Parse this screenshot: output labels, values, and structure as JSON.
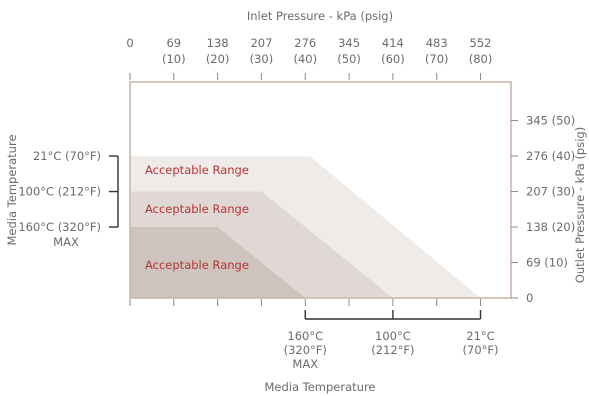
{
  "chart_data": {
    "type": "area",
    "title": "",
    "x_top": {
      "label": "Inlet Pressure - kPa (psig)",
      "ticks": [
        {
          "value": 0,
          "kpa": "0",
          "psig": ""
        },
        {
          "value": 69,
          "kpa": "69",
          "psig": "(10)"
        },
        {
          "value": 138,
          "kpa": "138",
          "psig": "(20)"
        },
        {
          "value": 207,
          "kpa": "207",
          "psig": "(30)"
        },
        {
          "value": 276,
          "kpa": "276",
          "psig": "(40)"
        },
        {
          "value": 345,
          "kpa": "345",
          "psig": "(50)"
        },
        {
          "value": 414,
          "kpa": "414",
          "psig": "(60)"
        },
        {
          "value": 483,
          "kpa": "483",
          "psig": "(70)"
        },
        {
          "value": 552,
          "kpa": "552",
          "psig": "(80)"
        }
      ],
      "xlim": [
        0,
        600
      ]
    },
    "y_right": {
      "label": "Outlet Pressure - kPa (psig)",
      "ticks": [
        {
          "value": 0,
          "text": "0"
        },
        {
          "value": 69,
          "text": "69 (10)"
        },
        {
          "value": 138,
          "text": "138 (20)"
        },
        {
          "value": 207,
          "text": "207 (30)"
        },
        {
          "value": 276,
          "text": "276 (40)"
        },
        {
          "value": 345,
          "text": "345 (50)"
        }
      ],
      "ylim": [
        0,
        420
      ]
    },
    "y_left": {
      "label": "Media Temperature",
      "levels": [
        {
          "value": 276,
          "lines": [
            "21°C (70°F)"
          ]
        },
        {
          "value": 207,
          "lines": [
            "100°C (212°F)"
          ]
        },
        {
          "value": 138,
          "lines": [
            "160°C (320°F)",
            "MAX"
          ]
        }
      ]
    },
    "x_bottom": {
      "label": "Media Temperature",
      "levels": [
        {
          "value": 276,
          "lines": [
            "160°C",
            "(320°F)",
            "MAX"
          ]
        },
        {
          "value": 414,
          "lines": [
            "100°C",
            "(212°F)"
          ]
        },
        {
          "value": 552,
          "lines": [
            "21°C",
            "(70°F)"
          ]
        }
      ]
    },
    "series": [
      {
        "label": "Acceptable Range",
        "color": "#efebe8",
        "points": [
          [
            0,
            276
          ],
          [
            283,
            276
          ],
          [
            552,
            0
          ],
          [
            0,
            0
          ]
        ]
      },
      {
        "label": "Acceptable Range",
        "color": "#e0d8d4",
        "points": [
          [
            0,
            207
          ],
          [
            207,
            207
          ],
          [
            414,
            0
          ],
          [
            0,
            0
          ]
        ]
      },
      {
        "label": "Acceptable Range",
        "color": "#cfc3bd",
        "points": [
          [
            0,
            138
          ],
          [
            138,
            138
          ],
          [
            276,
            0
          ],
          [
            0,
            0
          ]
        ]
      }
    ],
    "colors": {
      "frame": "#c9b8ae",
      "label": "#b5343a",
      "text": "#6b6b6b",
      "bracket": "#333333"
    }
  }
}
